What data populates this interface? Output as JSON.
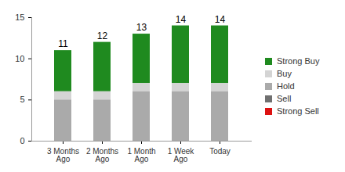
{
  "chart_data": {
    "type": "bar",
    "stacked": true,
    "legend": "right",
    "grid": false,
    "categories": [
      "3 Months Ago",
      "2 Months Ago",
      "1 Month Ago",
      "1 Week Ago",
      "Today"
    ],
    "series": [
      {
        "name": "Strong Buy",
        "color": "#1f8a1f",
        "values": [
          5,
          6,
          6,
          7,
          7
        ]
      },
      {
        "name": "Buy",
        "color": "#d4d4d4",
        "values": [
          1,
          1,
          1,
          1,
          1
        ]
      },
      {
        "name": "Hold",
        "color": "#aaaaaa",
        "values": [
          5,
          5,
          6,
          6,
          6
        ]
      },
      {
        "name": "Sell",
        "color": "#707070",
        "values": [
          0,
          0,
          0,
          0,
          0
        ]
      },
      {
        "name": "Strong Sell",
        "color": "#dd1111",
        "values": [
          0,
          0,
          0,
          0,
          0
        ]
      }
    ],
    "totals": [
      11,
      12,
      13,
      14,
      14
    ],
    "ylim": [
      0,
      15
    ],
    "yticks": [
      0,
      5,
      10,
      15
    ]
  }
}
